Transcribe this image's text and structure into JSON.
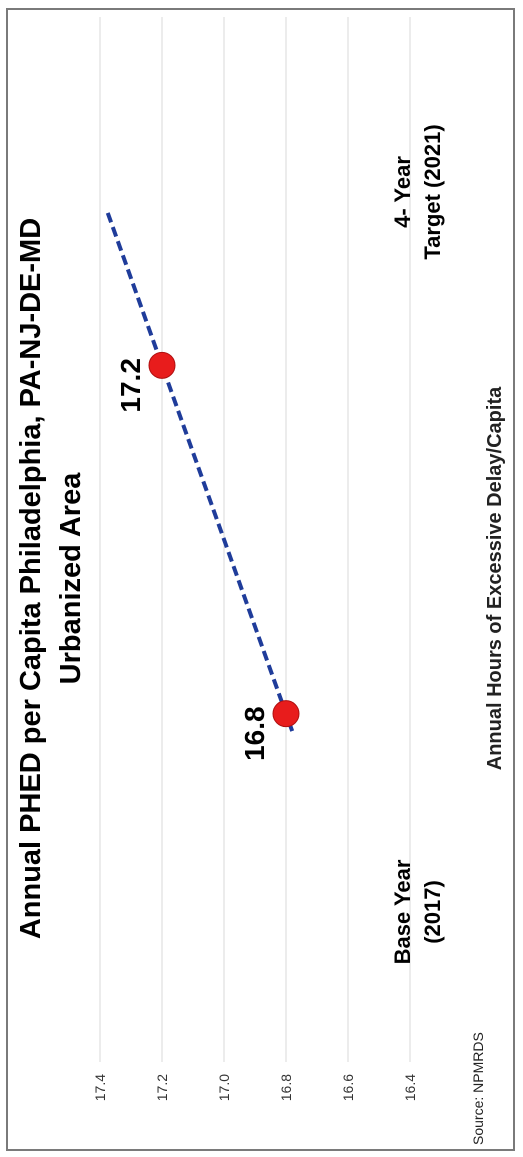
{
  "chart_data": {
    "type": "line",
    "title_line1": "Annual PHED per Capita Philadelphia, PA-NJ-DE-MD",
    "title_line2": "Urbanized Area",
    "categories": [
      [
        "Base Year",
        "(2017)"
      ],
      [
        "4- Year",
        "Target (2021)"
      ]
    ],
    "values": [
      16.8,
      17.2
    ],
    "data_labels": [
      "16.8",
      "17.2"
    ],
    "trendline": {
      "style": "dashed",
      "color": "#1f3c9a",
      "x_range": [
        0.95,
        2.45
      ]
    },
    "ylabel": "Annual Hours of Excessive Delay/Capita",
    "ylim": [
      16.4,
      17.4
    ],
    "yticks": [
      "16.4",
      "16.6",
      "16.8",
      "17.0",
      "17.2",
      "17.4"
    ],
    "grid": true,
    "marker_color": "#e81c1c",
    "source": "Source: NPMRDS"
  }
}
